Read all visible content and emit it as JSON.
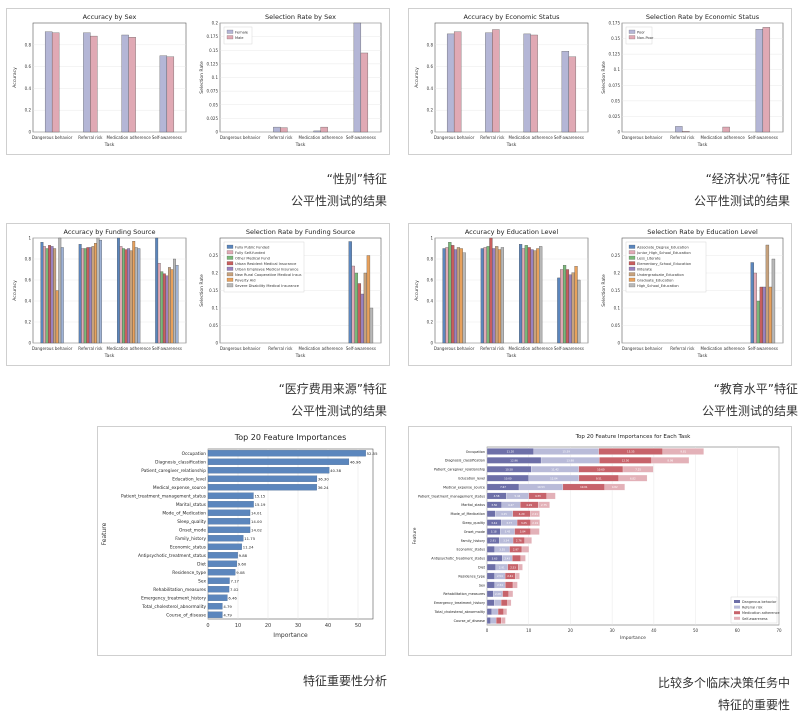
{
  "colors": {
    "c1": "#b4b6d6",
    "c2": "#e0a9b4",
    "c3": "#9fb3d6",
    "c4": "#e8a15c",
    "c5": "#7ab87a",
    "c6": "#c85e5e",
    "c7": "#9a82bf",
    "c8": "#c7a27d",
    "c9": "#b8b8b8",
    "c10": "#5b86bd"
  },
  "panels": [
    {
      "id": "p1",
      "caption": [
        "“性别”特征",
        "公平性测试的结果"
      ]
    },
    {
      "id": "p2",
      "caption": [
        "“经济状况”特征",
        "公平性测试的结果"
      ]
    },
    {
      "id": "p3",
      "caption": [
        "“医疗费用来源”特征",
        "公平性测试的结果"
      ]
    },
    {
      "id": "p4",
      "caption": [
        "“教育水平”特征",
        "公平性测试的结果"
      ]
    },
    {
      "id": "p5",
      "caption": [
        "特征重要性分析"
      ]
    },
    {
      "id": "p6",
      "caption": [
        "比较多个临床决策任务中",
        "特征的重要性"
      ]
    }
  ],
  "chart_data": [
    {
      "type": "bar",
      "title": "Accuracy by Sex",
      "xlabel": "Task",
      "ylabel": "Accuracy",
      "categories": [
        "Dangerous behavior",
        "Referral risk",
        "Medication adherence",
        "Self-awareness"
      ],
      "ylim": [
        0,
        1.0
      ],
      "ticks": [
        0,
        0.2,
        0.4,
        0.6,
        0.8
      ],
      "series": [
        {
          "name": "",
          "values": [
            0.92,
            0.91,
            0.89,
            0.7
          ]
        },
        {
          "name": "",
          "values": [
            0.91,
            0.88,
            0.87,
            0.69
          ]
        }
      ]
    },
    {
      "type": "bar",
      "title": "Selection Rate by Sex",
      "xlabel": "Task",
      "ylabel": "Selection Rate",
      "categories": [
        "Dangerous behavior",
        "Referral risk",
        "Medication adherence",
        "Self-awareness"
      ],
      "ylim": [
        0,
        0.2
      ],
      "ticks": [
        0,
        0.025,
        0.05,
        0.075,
        0.1,
        0.125,
        0.15,
        0.175,
        0.2
      ],
      "series": [
        {
          "name": "Female",
          "values": [
            0,
            0.009,
            0.002,
            0.2
          ]
        },
        {
          "name": "Male",
          "values": [
            0,
            0.008,
            0.009,
            0.145
          ]
        }
      ]
    },
    {
      "type": "bar",
      "title": "Accuracy by Economic Status",
      "xlabel": "Task",
      "ylabel": "Accuracy",
      "categories": [
        "Dangerous behavior",
        "Referral risk",
        "Medication adherence",
        "Self-awareness"
      ],
      "ylim": [
        0,
        1.0
      ],
      "ticks": [
        0,
        0.2,
        0.4,
        0.6,
        0.8
      ],
      "series": [
        {
          "name": "",
          "values": [
            0.9,
            0.91,
            0.9,
            0.74
          ]
        },
        {
          "name": "",
          "values": [
            0.92,
            0.94,
            0.89,
            0.69
          ]
        }
      ]
    },
    {
      "type": "bar",
      "title": "Selection Rate by Economic Status",
      "xlabel": "Task",
      "ylabel": "Selection Rate",
      "categories": [
        "Dangerous behavior",
        "Referral risk",
        "Medication adherence",
        "Self-awareness"
      ],
      "ylim": [
        0,
        0.175
      ],
      "ticks": [
        0,
        0.025,
        0.05,
        0.075,
        0.1,
        0.125,
        0.15,
        0.175
      ],
      "series": [
        {
          "name": "Poor",
          "values": [
            0,
            0.009,
            0,
            0.165
          ]
        },
        {
          "name": "Non-Poor",
          "values": [
            0,
            0.001,
            0.008,
            0.168
          ]
        }
      ]
    },
    {
      "type": "bar",
      "title": "Accuracy by Funding Source",
      "xlabel": "Task",
      "ylabel": "Accuracy",
      "categories": [
        "Dangerous behavior",
        "Referral risk",
        "Medication adherence",
        "Self-awareness"
      ],
      "ylim": [
        0,
        1.0
      ],
      "ticks": [
        0,
        0.2,
        0.4,
        0.6,
        0.8,
        1.0
      ],
      "series": [
        {
          "name": "",
          "values": [
            0.96,
            0.94,
            1.0,
            1.0
          ]
        },
        {
          "name": "",
          "values": [
            0.92,
            0.9,
            0.92,
            0.76
          ]
        },
        {
          "name": "",
          "values": [
            0.9,
            0.9,
            0.9,
            0.68
          ]
        },
        {
          "name": "",
          "values": [
            0.93,
            0.91,
            0.89,
            0.66
          ]
        },
        {
          "name": "",
          "values": [
            0.92,
            0.91,
            0.9,
            0.64
          ]
        },
        {
          "name": "",
          "values": [
            0.9,
            0.92,
            0.88,
            0.72
          ]
        },
        {
          "name": "",
          "values": [
            0.5,
            0.95,
            0.97,
            0.7
          ]
        },
        {
          "name": "",
          "values": [
            1.0,
            1.0,
            0.91,
            0.8
          ]
        },
        {
          "name": "",
          "values": [
            0.91,
            0.98,
            0.9,
            0.74
          ]
        }
      ]
    },
    {
      "type": "bar",
      "title": "Selection Rate by Funding Source",
      "xlabel": "Task",
      "ylabel": "Selection Rate",
      "categories": [
        "Dangerous behavior",
        "Referral risk",
        "Medication adherence",
        "Self-awareness"
      ],
      "ylim": [
        0,
        0.3
      ],
      "ticks": [
        0,
        0.05,
        0.1,
        0.15,
        0.2,
        0.25
      ],
      "series": [
        {
          "name": "Fully Public Funded",
          "values": [
            0,
            0,
            0,
            0.29
          ]
        },
        {
          "name": "Fully Self-funded",
          "values": [
            0,
            0,
            0,
            0.22
          ]
        },
        {
          "name": "Other Medical Fund",
          "values": [
            0,
            0,
            0,
            0.2
          ]
        },
        {
          "name": "Urban Resident Medical Insurance",
          "values": [
            0,
            0,
            0,
            0.17
          ]
        },
        {
          "name": "Urban Employee Medical Insurance",
          "values": [
            0,
            0,
            0,
            0.14
          ]
        },
        {
          "name": "New Rural Cooperative Medical Insur.",
          "values": [
            0,
            0,
            0,
            0.2
          ]
        },
        {
          "name": "Poverty Aid",
          "values": [
            0,
            0,
            0,
            0.25
          ]
        },
        {
          "name": "Severe Disability Medical Insurance",
          "values": [
            0,
            0,
            0,
            0.1
          ]
        }
      ]
    },
    {
      "type": "bar",
      "title": "Accuracy by Education Level",
      "xlabel": "Task",
      "ylabel": "Accuracy",
      "categories": [
        "Dangerous behavior",
        "Referral risk",
        "Medication adherence",
        "Self-awareness"
      ],
      "ylim": [
        0,
        1.0
      ],
      "ticks": [
        0,
        0.2,
        0.4,
        0.6,
        0.8,
        1.0
      ],
      "series": [
        {
          "name": "",
          "values": [
            0.9,
            0.9,
            0.94,
            0.62
          ]
        },
        {
          "name": "",
          "values": [
            0.91,
            0.91,
            0.9,
            0.7
          ]
        },
        {
          "name": "",
          "values": [
            0.96,
            0.92,
            0.93,
            0.74
          ]
        },
        {
          "name": "",
          "values": [
            0.93,
            1.0,
            0.91,
            0.7
          ]
        },
        {
          "name": "",
          "values": [
            0.89,
            0.9,
            0.89,
            0.65
          ]
        },
        {
          "name": "",
          "values": [
            0.91,
            0.92,
            0.88,
            0.67
          ]
        },
        {
          "name": "",
          "values": [
            0.9,
            0.89,
            0.9,
            0.73
          ]
        },
        {
          "name": "",
          "values": [
            0.86,
            0.91,
            0.92,
            0.6
          ]
        }
      ]
    },
    {
      "type": "bar",
      "title": "Selection Rate by Education Level",
      "xlabel": "Task",
      "ylabel": "Selection Rate",
      "categories": [
        "Dangerous behavior",
        "Referral risk",
        "Medication adherence",
        "Self-awareness"
      ],
      "ylim": [
        0,
        0.3
      ],
      "ticks": [
        0,
        0.05,
        0.1,
        0.15,
        0.2,
        0.25
      ],
      "series": [
        {
          "name": "Associate_Degree_Education",
          "values": [
            0,
            0,
            0,
            0.23
          ]
        },
        {
          "name": "Junior_High_School_Education",
          "values": [
            0,
            0,
            0,
            0.2
          ]
        },
        {
          "name": "Less_Literate",
          "values": [
            0,
            0,
            0,
            0.12
          ]
        },
        {
          "name": "Elementary_School_Education",
          "values": [
            0,
            0,
            0,
            0.16
          ]
        },
        {
          "name": "Illiterate",
          "values": [
            0,
            0,
            0,
            0.16
          ]
        },
        {
          "name": "Undergraduate_Education",
          "values": [
            0,
            0,
            0,
            0.28
          ]
        },
        {
          "name": "Graduate_Education",
          "values": [
            0,
            0,
            0,
            0.16
          ]
        },
        {
          "name": "High_School_Education",
          "values": [
            0,
            0,
            0,
            0.24
          ]
        }
      ]
    },
    {
      "type": "bar",
      "orientation": "horizontal",
      "title": "Top 20 Feature Importances",
      "xlabel": "Importance",
      "ylabel": "Feature",
      "xlim": [
        0,
        55
      ],
      "ticks": [
        0,
        10,
        20,
        30,
        40,
        50
      ],
      "categories": [
        "Occupation",
        "Diagnosis_classification",
        "Patient_caregiver_relationship",
        "Education_level",
        "Medical_expense_source",
        "Patient_treatment_management_status",
        "Marital_status",
        "Mode_of_Medication",
        "Sleep_quality",
        "Onset_mode",
        "Family_history",
        "Economic_status",
        "Antipsychotic_treatment_status",
        "Diet",
        "Residence_type",
        "Sex",
        "Rehabilitation_measures",
        "Emergency_treatment_history",
        "Total_cholesterol_abnormality",
        "Course_of_disease"
      ],
      "values": [
        52.55,
        46.96,
        40.38,
        36.3,
        36.24,
        15.15,
        15.19,
        14.01,
        14.0,
        14.02,
        11.75,
        11.24,
        9.88,
        9.6,
        9.08,
        7.17,
        7.02,
        6.46,
        4.79,
        4.79
      ]
    },
    {
      "type": "bar",
      "orientation": "horizontal",
      "stacked": true,
      "title": "Top 20 Feature Importances for Each Task",
      "xlabel": "Importance",
      "ylabel": "Feature",
      "xlim": [
        0,
        70
      ],
      "ticks": [
        0,
        10,
        20,
        30,
        40,
        50,
        60,
        70
      ],
      "categories": [
        "Occupation",
        "Diagnosis_classification",
        "Patient_caregiver_relationship",
        "Education_level",
        "Medical_expense_source",
        "Patient_treatment_management_status",
        "Marital_status",
        "Mode_of_Medication",
        "Sleep_quality",
        "Onset_mode",
        "Family_history",
        "Economic_status",
        "Antipsychotic_treatment_status",
        "Diet",
        "Residence_type",
        "Sex",
        "Rehabilitation_measures",
        "Emergency_treatment_history",
        "Total_cholesterol_abnormality",
        "Course_of_disease"
      ],
      "series": [
        {
          "name": "Dangerous behavior",
          "values": [
            11.2,
            12.96,
            10.58,
            10.0,
            7.67,
            4.58,
            3.5,
            1.95,
            3.44,
            3.18,
            2.91,
            1.86,
            3.63,
            2.08,
            1.81,
            1.85,
            1.46,
            1.75,
            1.18,
            0.91
          ]
        },
        {
          "name": "Referral risk",
          "values": [
            15.59,
            13.98,
            11.42,
            12.04,
            10.53,
            5.44,
            4.47,
            4.25,
            3.77,
            3.45,
            3.34,
            3.55,
            2.43,
            2.91,
            2.54,
            2.54,
            2.28,
            1.63,
            1.47,
            1.29
          ]
        },
        {
          "name": "Medication adherence",
          "values": [
            15.35,
            12.5,
            10.6,
            9.51,
            10.01,
            4.33,
            4.29,
            4.2,
            3.25,
            3.84,
            2.76,
            2.97,
            2.07,
            2.53,
            2.41,
            1.84,
            1.51,
            1.53,
            1.36,
            1.22
          ]
        },
        {
          "name": "Self-awareness",
          "values": [
            9.81,
            8.98,
            7.25,
            6.82,
            4.82,
            2.05,
            2.75,
            2.21,
            2.19,
            2.1,
            1.7,
            1.68,
            1.1,
            1.0,
            1.04,
            1.07,
            0.97,
            0.87,
            0.76,
            1.0
          ]
        }
      ]
    }
  ]
}
